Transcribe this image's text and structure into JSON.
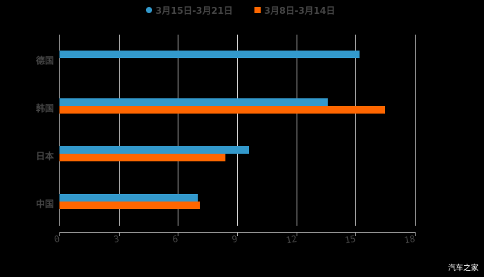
{
  "chart_data": {
    "type": "bar",
    "orientation": "horizontal",
    "title": "",
    "xlabel": "",
    "ylabel": "",
    "categories": [
      "德国",
      "韩国",
      "日本",
      "中国"
    ],
    "series": [
      {
        "name": "3月15日-3月21日",
        "color": "#3399cc",
        "values": [
          15.2,
          13.6,
          9.6,
          7.0
        ]
      },
      {
        "name": "3月8日-3月14日",
        "color": "#ff6600",
        "values": [
          0,
          16.5,
          8.4,
          7.1
        ]
      }
    ],
    "xlim": [
      0,
      18
    ],
    "xticks": [
      "0",
      "3",
      "6",
      "9",
      "12",
      "15",
      "18"
    ],
    "grid": true,
    "legend_position": "top"
  },
  "legend": [
    {
      "label": "3月15日-3月21日",
      "color": "#3399cc",
      "marker": "circle"
    },
    {
      "label": "3月8日-3月14日",
      "color": "#ff6600",
      "marker": "square"
    }
  ],
  "watermark": "汽车之家"
}
